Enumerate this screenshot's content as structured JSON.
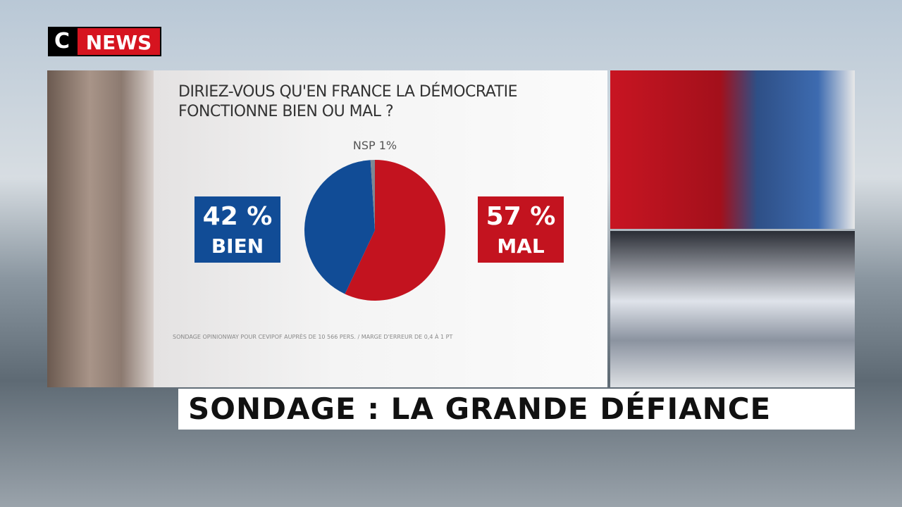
{
  "logo": {
    "letter": "C",
    "word": "NEWS"
  },
  "banner": "SONDAGE : LA GRANDE DÉFIANCE",
  "chart_data": {
    "type": "pie",
    "title": "DIRIEZ-VOUS QU'EN FRANCE LA DÉMOCRATIE FONCTIONNE BIEN OU MAL ?",
    "categories": [
      "MAL",
      "BIEN",
      "NSP"
    ],
    "values": [
      57,
      42,
      1
    ],
    "value_labels": [
      "57 %",
      "42 %",
      "1%"
    ],
    "colors": [
      "#c3131f",
      "#114c96",
      "#7d8893"
    ],
    "source": "SONDAGE OPINIONWAY POUR CEVIPOF AUPRÈS DE 10 566 PERS. / MARGE D'ERREUR DE 0,4 À 1 PT"
  }
}
